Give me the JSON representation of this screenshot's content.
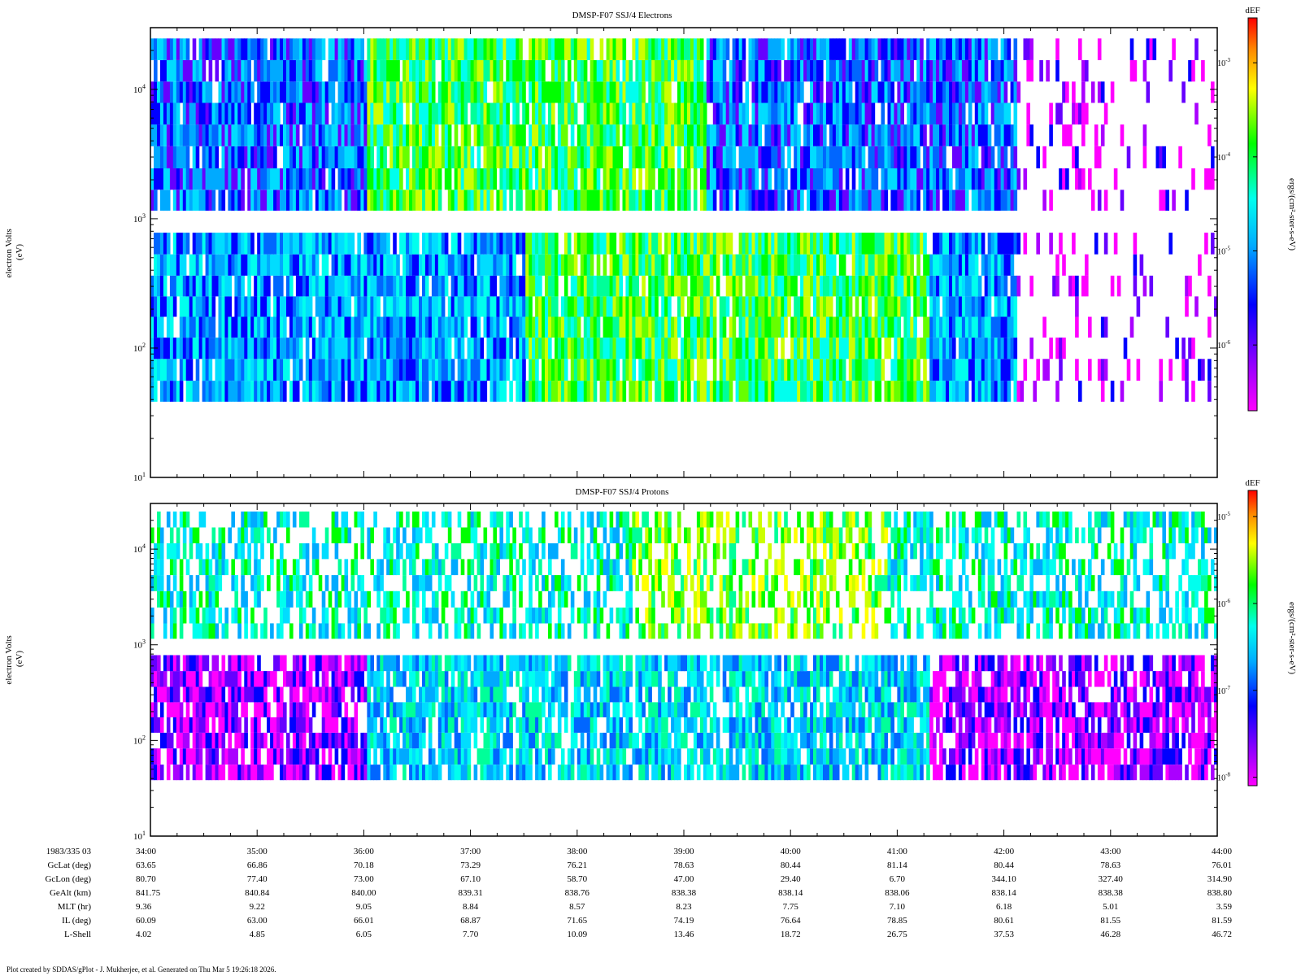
{
  "footer": "Plot created by SDDAS/gPlot - J. Mukherjee, et al.  Generated on Thu Mar 5 19:26:18 2026.",
  "chart_data": [
    {
      "type": "heatmap",
      "title": "DMSP-F07 SSJ/4 Electrons",
      "ylabel": [
        "electron Volts",
        "(eV)"
      ],
      "yscale": "log",
      "ylim": [
        10,
        30000
      ],
      "yticks": [
        {
          "base": "10",
          "exp": "1"
        },
        {
          "base": "10",
          "exp": "2"
        },
        {
          "base": "10",
          "exp": "3"
        },
        {
          "base": "10",
          "exp": "4"
        }
      ],
      "colorbar": {
        "title": "dEF",
        "label": "ergs/(cm²-ster-s-eV)",
        "scale": "log",
        "range": [
          2e-07,
          0.003
        ],
        "ticks": [
          {
            "base": "10",
            "exp": "-6"
          },
          {
            "base": "10",
            "exp": "-5"
          },
          {
            "base": "10",
            "exp": "-4"
          },
          {
            "base": "10",
            "exp": "-3"
          }
        ]
      },
      "energy_channels_ev": [
        46,
        68,
        100,
        145,
        210,
        300,
        440,
        640,
        950,
        1400,
        2000,
        3000,
        4400,
        6500,
        9500,
        13900,
        20400,
        30000
      ],
      "coverage_time_min": [
        34.0,
        44.0
      ]
    },
    {
      "type": "heatmap",
      "title": "DMSP-F07 SSJ/4 Protons",
      "ylabel": [
        "electron Volts",
        "(eV)"
      ],
      "yscale": "log",
      "ylim": [
        10,
        30000
      ],
      "yticks": [
        {
          "base": "10",
          "exp": "1"
        },
        {
          "base": "10",
          "exp": "2"
        },
        {
          "base": "10",
          "exp": "3"
        },
        {
          "base": "10",
          "exp": "4"
        }
      ],
      "colorbar": {
        "title": "dEF",
        "label": "ergs/(cm²-ster-s-eV)",
        "scale": "log",
        "range": [
          8e-09,
          2e-05
        ],
        "ticks": [
          {
            "base": "10",
            "exp": "-8"
          },
          {
            "base": "10",
            "exp": "-7"
          },
          {
            "base": "10",
            "exp": "-6"
          },
          {
            "base": "10",
            "exp": "-5"
          }
        ]
      },
      "energy_channels_ev": [
        46,
        68,
        100,
        145,
        210,
        300,
        440,
        640,
        950,
        1400,
        2000,
        3000,
        4400,
        6500,
        9500,
        13900,
        20400,
        30000
      ],
      "coverage_time_min": [
        34.0,
        44.0
      ]
    }
  ],
  "x_axis": {
    "ticks": [
      "34:00",
      "35:00",
      "36:00",
      "37:00",
      "38:00",
      "39:00",
      "40:00",
      "41:00",
      "42:00",
      "43:00",
      "44:00"
    ],
    "rows": [
      {
        "label": "1983/335 03",
        "values": [
          "34:00",
          "35:00",
          "36:00",
          "37:00",
          "38:00",
          "39:00",
          "40:00",
          "41:00",
          "42:00",
          "43:00",
          "44:00"
        ]
      },
      {
        "label": "GcLat (deg)",
        "values": [
          "63.65",
          "66.86",
          "70.18",
          "73.29",
          "76.21",
          "78.63",
          "80.44",
          "81.14",
          "80.44",
          "78.63",
          "76.01"
        ]
      },
      {
        "label": "GcLon (deg)",
        "values": [
          "80.70",
          "77.40",
          "73.00",
          "67.10",
          "58.70",
          "47.00",
          "29.40",
          "6.70",
          "344.10",
          "327.40",
          "314.90"
        ]
      },
      {
        "label": "GeAlt (km)",
        "values": [
          "841.75",
          "840.84",
          "840.00",
          "839.31",
          "838.76",
          "838.38",
          "838.14",
          "838.06",
          "838.14",
          "838.38",
          "838.80"
        ]
      },
      {
        "label": "MLT (hr)",
        "values": [
          "9.36",
          "9.22",
          "9.05",
          "8.84",
          "8.57",
          "8.23",
          "7.75",
          "7.10",
          "6.18",
          "5.01",
          "3.59"
        ]
      },
      {
        "label": "IL (deg)",
        "values": [
          "60.09",
          "63.00",
          "66.01",
          "68.87",
          "71.65",
          "74.19",
          "76.64",
          "78.85",
          "80.61",
          "81.55",
          "81.59"
        ]
      },
      {
        "label": "L-Shell",
        "values": [
          "4.02",
          "4.85",
          "6.05",
          "7.70",
          "10.09",
          "13.46",
          "18.72",
          "26.75",
          "37.53",
          "46.28",
          "46.72"
        ]
      }
    ]
  }
}
